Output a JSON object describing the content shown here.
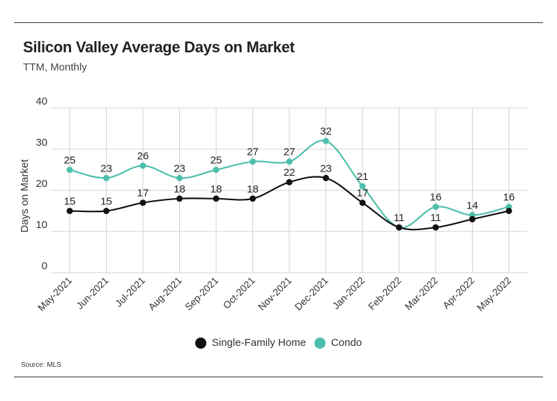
{
  "title": "Silicon Valley Average Days on Market",
  "subtitle": "TTM, Monthly",
  "source": "Source:  MLS",
  "chart_data": {
    "type": "line",
    "title": "Silicon Valley Average Days on Market",
    "subtitle": "TTM, Monthly",
    "xlabel": "",
    "ylabel": "Days on Market",
    "ylim": [
      0,
      40
    ],
    "yticks": [
      0,
      10,
      20,
      30,
      40
    ],
    "grid": true,
    "legend_position": "bottom-center",
    "categories": [
      "May-2021",
      "Jun-2021",
      "Jul-2021",
      "Aug-2021",
      "Sep-2021",
      "Oct-2021",
      "Nov-2021",
      "Dec-2021",
      "Jan-2022",
      "Feb-2022",
      "Mar-2022",
      "Apr-2022",
      "May-2022"
    ],
    "series": [
      {
        "name": "Single-Family Home",
        "color": "#111111",
        "values": [
          15,
          15,
          17,
          18,
          18,
          18,
          22,
          23,
          17,
          11,
          11,
          13,
          15
        ],
        "labels": [
          "15",
          "15",
          "17",
          "18",
          "18",
          "18",
          "22",
          "23",
          "17",
          "11",
          "11",
          "",
          ""
        ]
      },
      {
        "name": "Condo",
        "color": "#4dbfac",
        "values": [
          25,
          23,
          26,
          23,
          25,
          27,
          27,
          32,
          21,
          11,
          16,
          14,
          16
        ],
        "labels": [
          "25",
          "23",
          "26",
          "23",
          "25",
          "27",
          "27",
          "32",
          "21",
          "",
          "16",
          "14",
          "16"
        ]
      }
    ]
  },
  "legend": [
    {
      "label": "Single-Family Home",
      "color": "#111111"
    },
    {
      "label": "Condo",
      "color": "#4dbfac"
    }
  ]
}
